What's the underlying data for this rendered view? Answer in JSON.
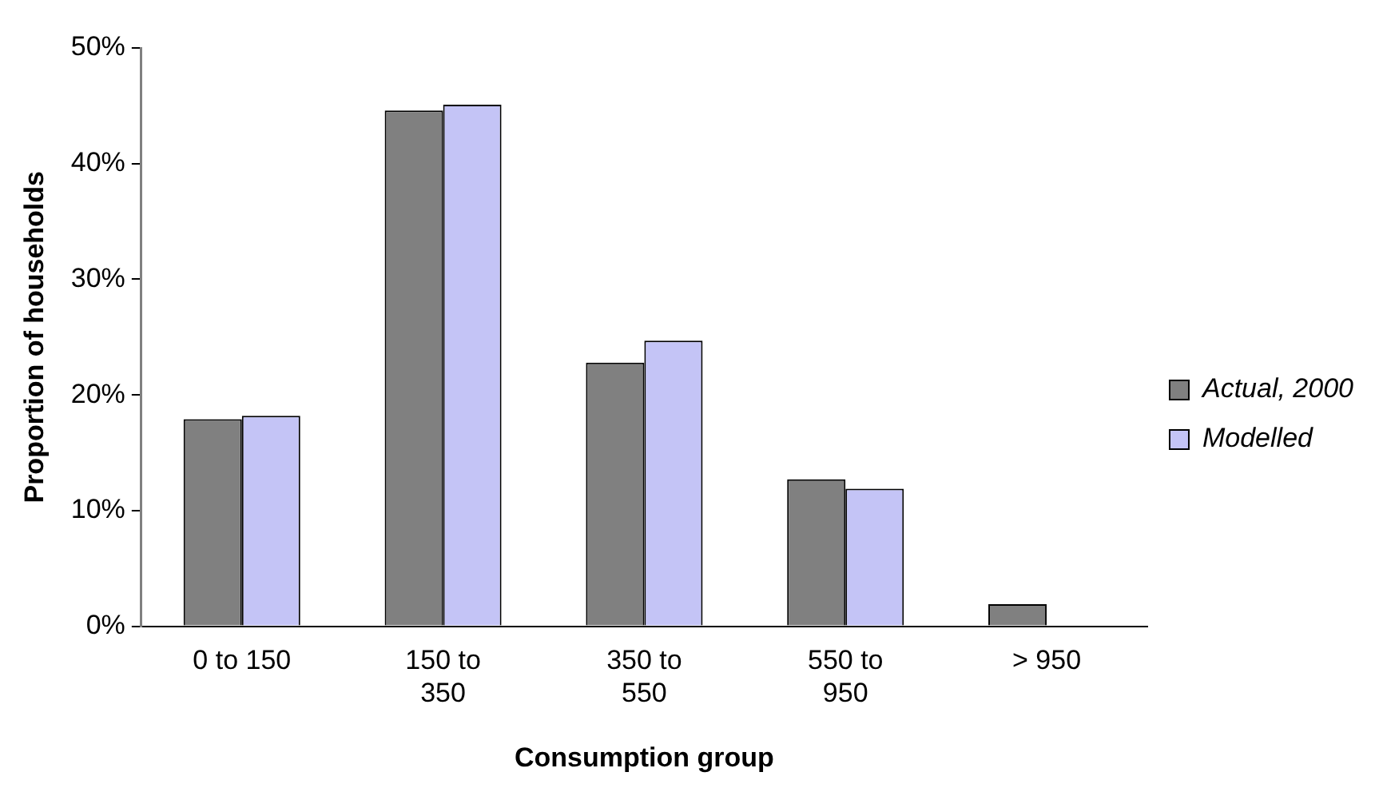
{
  "chart_data": {
    "type": "bar",
    "categories": [
      "0 to 150",
      "150 to 350",
      "350 to 550",
      "550 to 950",
      "> 950"
    ],
    "series": [
      {
        "name": "Actual, 2000",
        "color": "#808080",
        "values": [
          17.9,
          44.6,
          22.8,
          12.7,
          1.9
        ]
      },
      {
        "name": "Modelled",
        "color": "#c4c4f6",
        "values": [
          18.2,
          45.1,
          24.7,
          11.9,
          null
        ]
      }
    ],
    "xlabel": "Consumption group",
    "ylabel": "Proportion of households",
    "ylim": [
      0,
      50
    ],
    "yticks": [
      {
        "value": 0,
        "label": "0%"
      },
      {
        "value": 10,
        "label": "10%"
      },
      {
        "value": 20,
        "label": "20%"
      },
      {
        "value": 30,
        "label": "30%"
      },
      {
        "value": 40,
        "label": "40%"
      },
      {
        "value": 50,
        "label": "50%"
      }
    ],
    "grid": false,
    "legend": "right"
  }
}
